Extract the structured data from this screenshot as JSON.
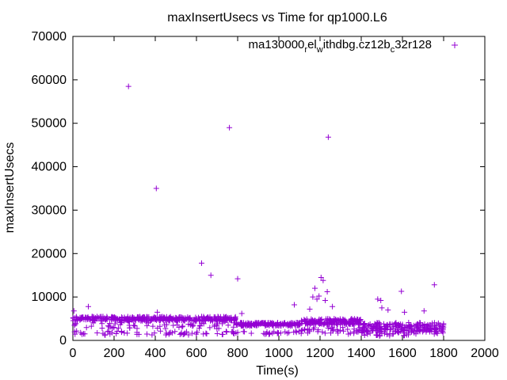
{
  "chart_data": {
    "type": "scatter",
    "title": "maxInsertUsecs vs Time for qp1000.L6",
    "xlabel": "Time(s)",
    "ylabel": "maxInsertUsecs",
    "xlim": [
      0,
      2000
    ],
    "ylim": [
      0,
      70000
    ],
    "x_ticks": [
      0,
      200,
      400,
      600,
      800,
      1000,
      1200,
      1400,
      1600,
      1800,
      2000
    ],
    "y_ticks": [
      0,
      10000,
      20000,
      30000,
      40000,
      50000,
      60000,
      70000
    ],
    "x_tick_labels": [
      "0",
      "200",
      "400",
      "600",
      "800",
      "1000",
      "1200",
      "1400",
      "1600",
      "1800",
      "2000"
    ],
    "y_tick_labels": [
      "0",
      "10000",
      "20000",
      "30000",
      "40000",
      "50000",
      "60000",
      "70000"
    ],
    "legend": {
      "position": "top-right",
      "label_parts": [
        "ma130000",
        "r",
        "el",
        "w",
        "ithdbg.cz12b",
        "c",
        "32r128"
      ],
      "label_subscript_flags": [
        false,
        true,
        false,
        true,
        false,
        true,
        false
      ]
    },
    "series": [
      {
        "name": "ma130000_rel_withdbg.cz12b_c32r128",
        "color": "#9400d3",
        "marker": "plus",
        "outliers": [
          {
            "x": 5,
            "y": 6800
          },
          {
            "x": 75,
            "y": 7800
          },
          {
            "x": 270,
            "y": 58500
          },
          {
            "x": 405,
            "y": 35000
          },
          {
            "x": 410,
            "y": 6500
          },
          {
            "x": 625,
            "y": 17800
          },
          {
            "x": 670,
            "y": 15000
          },
          {
            "x": 760,
            "y": 49000
          },
          {
            "x": 800,
            "y": 14200
          },
          {
            "x": 820,
            "y": 6200
          },
          {
            "x": 1075,
            "y": 8200
          },
          {
            "x": 1150,
            "y": 7200
          },
          {
            "x": 1165,
            "y": 10000
          },
          {
            "x": 1175,
            "y": 12000
          },
          {
            "x": 1185,
            "y": 9500
          },
          {
            "x": 1195,
            "y": 10200
          },
          {
            "x": 1205,
            "y": 14500
          },
          {
            "x": 1215,
            "y": 13800
          },
          {
            "x": 1225,
            "y": 9200
          },
          {
            "x": 1235,
            "y": 11200
          },
          {
            "x": 1240,
            "y": 46800
          },
          {
            "x": 1260,
            "y": 7800
          },
          {
            "x": 1480,
            "y": 9500
          },
          {
            "x": 1495,
            "y": 9200
          },
          {
            "x": 1500,
            "y": 7500
          },
          {
            "x": 1530,
            "y": 7000
          },
          {
            "x": 1595,
            "y": 11300
          },
          {
            "x": 1610,
            "y": 6500
          },
          {
            "x": 1705,
            "y": 6800
          },
          {
            "x": 1755,
            "y": 12800
          }
        ],
        "bands": [
          {
            "x_start": 0,
            "x_end": 790,
            "y_center": 5000,
            "y_spread": 500,
            "count": 320
          },
          {
            "x_start": 0,
            "x_end": 790,
            "y_center": 3600,
            "y_spread": 900,
            "count": 70
          },
          {
            "x_start": 0,
            "x_end": 790,
            "y_center": 1700,
            "y_spread": 500,
            "count": 60
          },
          {
            "x_start": 790,
            "x_end": 1100,
            "y_center": 3700,
            "y_spread": 400,
            "count": 150
          },
          {
            "x_start": 790,
            "x_end": 1100,
            "y_center": 1800,
            "y_spread": 400,
            "count": 25
          },
          {
            "x_start": 1100,
            "x_end": 1400,
            "y_center": 4300,
            "y_spread": 700,
            "count": 170
          },
          {
            "x_start": 1100,
            "x_end": 1400,
            "y_center": 2200,
            "y_spread": 800,
            "count": 40
          },
          {
            "x_start": 1400,
            "x_end": 1800,
            "y_center": 3000,
            "y_spread": 1100,
            "count": 200
          },
          {
            "x_start": 1400,
            "x_end": 1800,
            "y_center": 1400,
            "y_spread": 400,
            "count": 30
          }
        ]
      }
    ]
  }
}
